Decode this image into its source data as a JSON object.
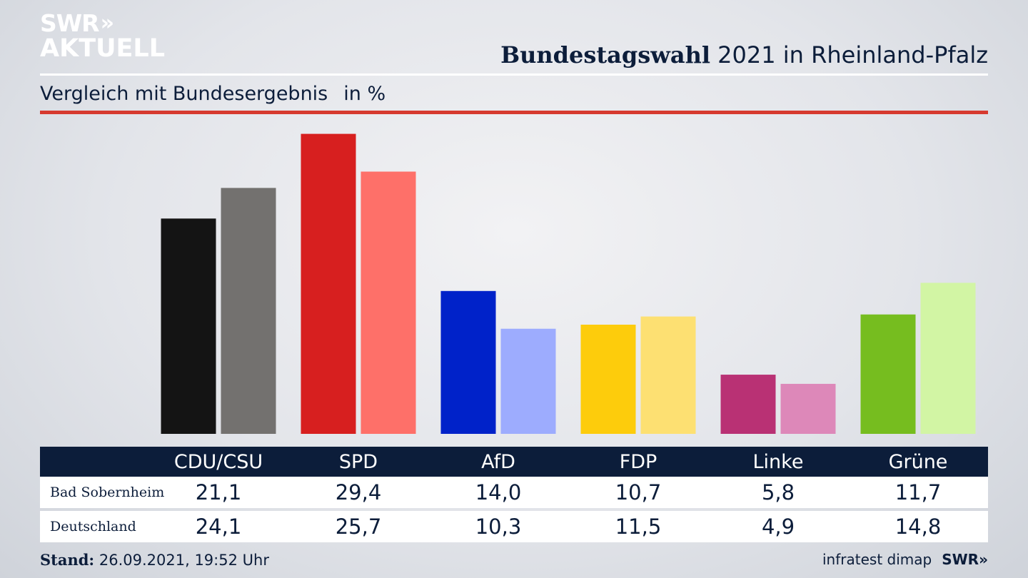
{
  "logo": {
    "line1": "SWR",
    "chevrons": "»",
    "line2": "AKTUELL"
  },
  "header": {
    "title_bold": "Bundestagswahl",
    "title_rest": " 2021 in Rheinland-Pfalz",
    "subtitle": "Vergleich mit Bundesergebnis",
    "unit": "in %"
  },
  "colors": {
    "navy": "#0c1d3a",
    "red_rule": "#d63a2f",
    "Bad Sobernheim": [
      "#141414",
      "#d71f1f",
      "#0022c9",
      "#fdcc0c",
      "#b93174",
      "#76bd1f"
    ],
    "Deutschland": [
      "#73716f",
      "#fe7069",
      "#9dacfe",
      "#fde072",
      "#dd88b9",
      "#d2f5a4"
    ]
  },
  "chart_data": {
    "type": "bar",
    "title": "Bundestagswahl 2021 in Rheinland-Pfalz",
    "subtitle": "Vergleich mit Bundesergebnis in %",
    "categories": [
      "CDU/CSU",
      "SPD",
      "AfD",
      "FDP",
      "Linke",
      "Grüne"
    ],
    "series": [
      {
        "name": "Bad Sobernheim",
        "values": [
          21.1,
          29.4,
          14.0,
          10.7,
          5.8,
          11.7
        ]
      },
      {
        "name": "Deutschland",
        "values": [
          24.1,
          25.7,
          10.3,
          11.5,
          4.9,
          14.8
        ]
      }
    ],
    "ylim": [
      0,
      30
    ],
    "grid": false,
    "legend": "table below chart"
  },
  "table": {
    "rows": [
      {
        "label": "Bad Sobernheim",
        "values": [
          "21,1",
          "29,4",
          "14,0",
          "10,7",
          "5,8",
          "11,7"
        ]
      },
      {
        "label": "Deutschland",
        "values": [
          "24,1",
          "25,7",
          "10,3",
          "11,5",
          "4,9",
          "14,8"
        ]
      }
    ]
  },
  "footer": {
    "stand_label": "Stand:",
    "stand_value": " 26.09.2021, 19:52 Uhr",
    "source": "infratest dimap",
    "brand": "SWR",
    "brand_chevrons": "»"
  }
}
